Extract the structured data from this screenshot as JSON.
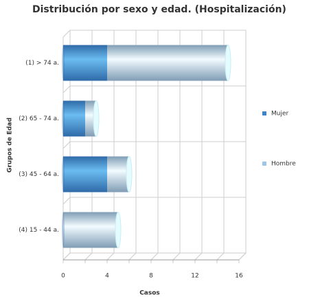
{
  "chart_data": {
    "type": "bar",
    "orientation": "horizontal",
    "stacked": true,
    "title": "Distribución por sexo y edad. (Hospitalización)",
    "x_label": "Casos",
    "y_label": "Grupos de Edad",
    "categories": [
      "(1) > 74 a.",
      "(2) 65 - 74 a.",
      "(3) 45 - 64 a.",
      "(4) 15 - 44 a."
    ],
    "series": [
      {
        "name": "Mujer",
        "color": "#3d85c6",
        "values": [
          4,
          2,
          4,
          0
        ]
      },
      {
        "name": "Hombre",
        "color": "#9fc5e8",
        "values": [
          11,
          1,
          2,
          5
        ]
      }
    ],
    "xlim": [
      0,
      16
    ],
    "xticks": [
      0,
      4,
      8,
      12,
      16
    ],
    "xticks_minor": [
      2,
      6,
      10,
      14
    ],
    "grid": true,
    "legend": "right"
  }
}
